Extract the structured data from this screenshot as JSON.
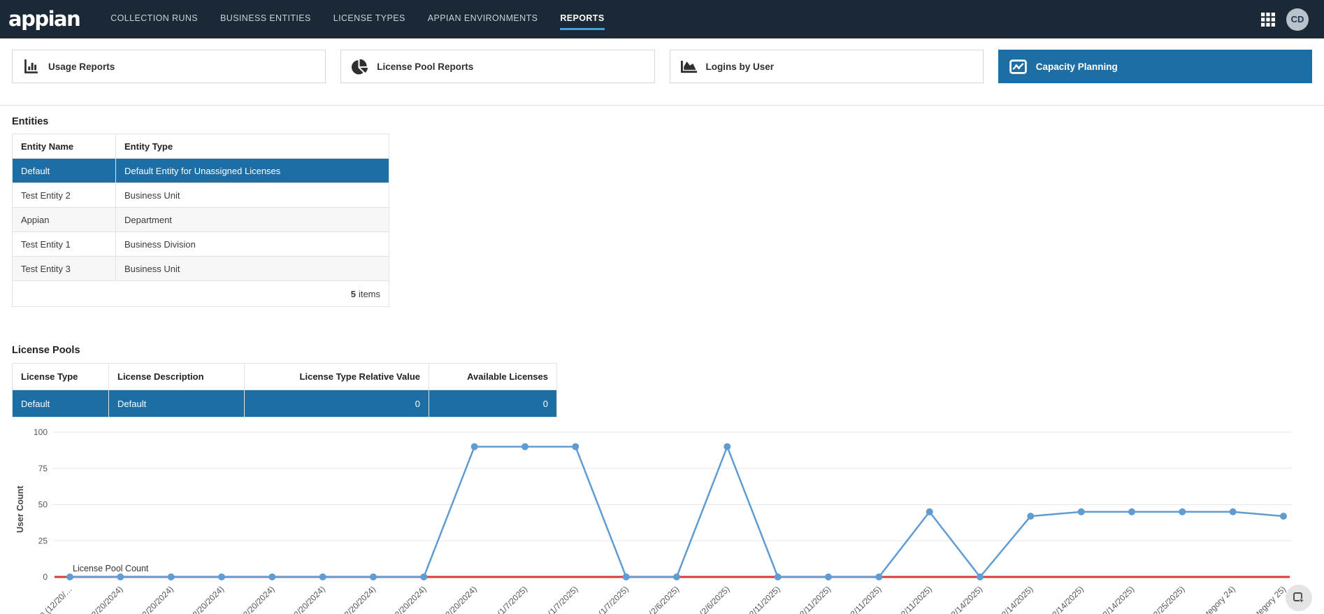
{
  "navbar": {
    "logo": "appian",
    "items": [
      {
        "label": "COLLECTION RUNS",
        "active": false
      },
      {
        "label": "BUSINESS ENTITIES",
        "active": false
      },
      {
        "label": "LICENSE TYPES",
        "active": false
      },
      {
        "label": "APPIAN ENVIRONMENTS",
        "active": false
      },
      {
        "label": "REPORTS",
        "active": true
      }
    ],
    "avatar": "CD"
  },
  "report_tabs": [
    {
      "label": "Usage Reports",
      "icon": "bar-chart-icon",
      "active": false
    },
    {
      "label": "License Pool Reports",
      "icon": "pie-chart-icon",
      "active": false
    },
    {
      "label": "Logins by User",
      "icon": "area-chart-icon",
      "active": false
    },
    {
      "label": "Capacity Planning",
      "icon": "line-chart-icon",
      "active": true
    }
  ],
  "entities": {
    "title": "Entities",
    "columns": [
      "Entity Name",
      "Entity Type"
    ],
    "rows": [
      {
        "name": "Default",
        "type": "Default Entity for Unassigned Licenses",
        "selected": true
      },
      {
        "name": "Test Entity 2",
        "type": "Business Unit",
        "selected": false
      },
      {
        "name": "Appian",
        "type": "Department",
        "selected": false
      },
      {
        "name": "Test Entity 1",
        "type": "Business Division",
        "selected": false
      },
      {
        "name": "Test Entity 3",
        "type": "Business Unit",
        "selected": false
      }
    ],
    "footer": {
      "count": "5",
      "label": "items"
    }
  },
  "license_pools": {
    "title": "License Pools",
    "columns": [
      "License Type",
      "License Description",
      "License Type Relative Value",
      "Available Licenses"
    ],
    "rows": [
      {
        "cells": [
          "Default",
          "Default",
          "0",
          "0"
        ],
        "selected": true
      }
    ]
  },
  "chart_data": {
    "type": "line",
    "title": "",
    "xlabel": "",
    "ylabel": "User Count",
    "ylim": [
      0,
      100
    ],
    "yticks": [
      0,
      25,
      50,
      75,
      100
    ],
    "grid": true,
    "legend_position": "series-label-left",
    "series_label": "License Pool Count",
    "categories": [
      "0 (12/20/…",
      "2/20/2024)",
      "2/20/2024)",
      "2/20/2024)",
      "2/20/2024)",
      "2/20/2024)",
      "2/20/2024)",
      "2/20/2024)",
      "2/20/2024)",
      "(1/7/2025)",
      "(1/7/2025)",
      "(1/7/2025)",
      "(2/6/2025)",
      "(2/6/2025)",
      "2/11/2025)",
      "2/11/2025)",
      "2/11/2025)",
      "2/11/2025)",
      "2/14/2025)",
      "2/14/2025)",
      "2/14/2025)",
      "2/14/2025)",
      "2/25/2025)",
      "tegory 24)",
      "tegory 25)"
    ],
    "series": [
      {
        "name": "User Count",
        "color": "#5e9cd3",
        "markers": true,
        "values": [
          0,
          0,
          0,
          0,
          0,
          0,
          0,
          0,
          90,
          90,
          90,
          0,
          0,
          90,
          0,
          0,
          0,
          45,
          0,
          42,
          45,
          45,
          45,
          45,
          42
        ]
      },
      {
        "name": "License Pool Count",
        "color": "#dc3a3a",
        "markers": false,
        "values": [
          0,
          0,
          0,
          0,
          0,
          0,
          0,
          0,
          0,
          0,
          0,
          0,
          0,
          0,
          0,
          0,
          0,
          0,
          0,
          0,
          0,
          0,
          0,
          0,
          0
        ]
      }
    ]
  },
  "colors": {
    "navy": "#1b2836",
    "accent_blue": "#1c6ea4",
    "underline_blue": "#47a1d9",
    "chart_blue": "#5e9cd3",
    "chart_red": "#dc3a3a"
  }
}
